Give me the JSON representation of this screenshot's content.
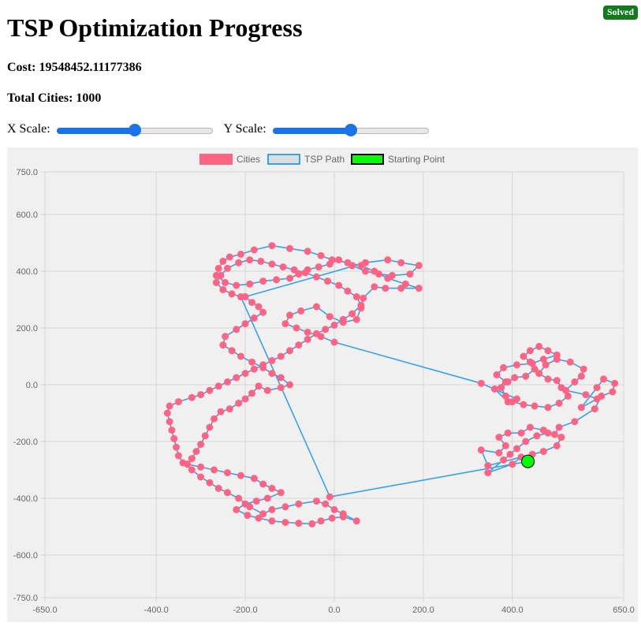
{
  "status_badge": "Solved",
  "title": "TSP Optimization Progress",
  "cost_text": "Cost: 19548452.11177386",
  "cities_text": "Total Cities: 1000",
  "controls": {
    "x_scale_label": "X Scale:",
    "y_scale_label": "Y Scale:",
    "x_scale_value": 0.5,
    "y_scale_value": 0.5
  },
  "colors": {
    "badge": "#117a1a",
    "cities": "#ff6384",
    "path": "#36a2eb",
    "start": "#00ff00",
    "slider": "#1a73e8",
    "chart_bg": "#f0f0f0"
  },
  "chart_data": {
    "type": "scatter",
    "legend_position": "top-center",
    "grid": true,
    "xlim": [
      -650,
      650
    ],
    "ylim": [
      -750,
      750
    ],
    "x_ticks": [
      "-650.0",
      "-400.0",
      "-200.0",
      "0.0",
      "200.0",
      "400.0",
      "650.0"
    ],
    "y_ticks": [
      "750.0",
      "600.0",
      "400.0",
      "200.0",
      "0.0",
      "-200.0",
      "-400.0",
      "-600.0",
      "-750.0"
    ],
    "x_tick_values": [
      -650,
      -400,
      -200,
      0,
      200,
      400,
      650
    ],
    "y_tick_values": [
      750,
      600,
      400,
      200,
      0,
      -200,
      -400,
      -600,
      -750
    ],
    "legend": [
      "Cities",
      "TSP Path",
      "Starting Point"
    ],
    "starting_point": {
      "x": 435,
      "y": -270
    },
    "path": [
      [
        435,
        -270
      ],
      [
        445,
        -245
      ],
      [
        470,
        -235
      ],
      [
        500,
        -215
      ],
      [
        510,
        -185
      ],
      [
        480,
        -170
      ],
      [
        455,
        -180
      ],
      [
        430,
        -200
      ],
      [
        410,
        -225
      ],
      [
        395,
        -245
      ],
      [
        380,
        -265
      ],
      [
        345,
        -310
      ],
      [
        400,
        -280
      ],
      [
        420,
        -255
      ],
      [
        345,
        -285
      ],
      [
        330,
        -230
      ],
      [
        370,
        -240
      ],
      [
        385,
        -215
      ],
      [
        370,
        -185
      ],
      [
        390,
        -170
      ],
      [
        420,
        -170
      ],
      [
        440,
        -150
      ],
      [
        470,
        -160
      ],
      [
        495,
        -175
      ],
      [
        505,
        -150
      ],
      [
        540,
        -130
      ],
      [
        585,
        -85
      ],
      [
        600,
        -40
      ],
      [
        625,
        -25
      ],
      [
        630,
        5
      ],
      [
        605,
        20
      ],
      [
        590,
        -10
      ],
      [
        555,
        -80
      ],
      [
        590,
        -50
      ],
      [
        565,
        -35
      ],
      [
        520,
        -20
      ],
      [
        540,
        10
      ],
      [
        555,
        30
      ],
      [
        560,
        55
      ],
      [
        530,
        80
      ],
      [
        500,
        90
      ],
      [
        475,
        70
      ],
      [
        460,
        40
      ],
      [
        480,
        20
      ],
      [
        500,
        15
      ],
      [
        510,
        -10
      ],
      [
        525,
        -40
      ],
      [
        505,
        -65
      ],
      [
        480,
        -80
      ],
      [
        450,
        -75
      ],
      [
        425,
        -70
      ],
      [
        400,
        -60
      ],
      [
        385,
        -40
      ],
      [
        375,
        -10
      ],
      [
        390,
        10
      ],
      [
        405,
        25
      ],
      [
        430,
        30
      ],
      [
        450,
        55
      ],
      [
        440,
        80
      ],
      [
        425,
        100
      ],
      [
        440,
        120
      ],
      [
        460,
        135
      ],
      [
        480,
        120
      ],
      [
        500,
        105
      ],
      [
        470,
        90
      ],
      [
        445,
        75
      ],
      [
        410,
        70
      ],
      [
        380,
        60
      ],
      [
        365,
        35
      ],
      [
        385,
        10
      ],
      [
        360,
        -15
      ],
      [
        390,
        -60
      ],
      [
        410,
        -50
      ],
      [
        330,
        5
      ],
      [
        0,
        150
      ],
      [
        -30,
        170
      ],
      [
        -60,
        185
      ],
      [
        -85,
        200
      ],
      [
        -110,
        215
      ],
      [
        -100,
        245
      ],
      [
        -75,
        260
      ],
      [
        -40,
        275
      ],
      [
        -10,
        240
      ],
      [
        20,
        220
      ],
      [
        50,
        230
      ],
      [
        60,
        270
      ],
      [
        65,
        305
      ],
      [
        90,
        345
      ],
      [
        115,
        340
      ],
      [
        150,
        340
      ],
      [
        190,
        340
      ],
      [
        160,
        355
      ],
      [
        120,
        375
      ],
      [
        90,
        400
      ],
      [
        60,
        420
      ],
      [
        30,
        430
      ],
      [
        -5,
        440
      ],
      [
        -30,
        455
      ],
      [
        -60,
        470
      ],
      [
        -100,
        480
      ],
      [
        -140,
        490
      ],
      [
        -180,
        475
      ],
      [
        -210,
        460
      ],
      [
        -235,
        450
      ],
      [
        -250,
        435
      ],
      [
        -260,
        410
      ],
      [
        -265,
        385
      ],
      [
        -245,
        360
      ],
      [
        -220,
        350
      ],
      [
        -190,
        355
      ],
      [
        -160,
        365
      ],
      [
        -130,
        370
      ],
      [
        -100,
        375
      ],
      [
        -80,
        390
      ],
      [
        -60,
        405
      ],
      [
        -35,
        415
      ],
      [
        -10,
        425
      ],
      [
        10,
        440
      ],
      [
        40,
        420
      ],
      [
        70,
        400
      ],
      [
        100,
        390
      ],
      [
        130,
        385
      ],
      [
        170,
        390
      ],
      [
        190,
        420
      ],
      [
        150,
        430
      ],
      [
        120,
        440
      ],
      [
        70,
        430
      ],
      [
        -200,
        310
      ],
      [
        -185,
        290
      ],
      [
        -170,
        275
      ],
      [
        -160,
        255
      ],
      [
        -180,
        235
      ],
      [
        -200,
        215
      ],
      [
        -220,
        195
      ],
      [
        -245,
        170
      ],
      [
        -250,
        140
      ],
      [
        -230,
        120
      ],
      [
        -210,
        100
      ],
      [
        -185,
        80
      ],
      [
        -160,
        60
      ],
      [
        -140,
        40
      ],
      [
        -120,
        25
      ],
      [
        -100,
        0
      ],
      [
        -120,
        -10
      ],
      [
        -150,
        -20
      ],
      [
        -170,
        -5
      ],
      [
        -185,
        -30
      ],
      [
        -200,
        -50
      ],
      [
        -215,
        -65
      ],
      [
        -235,
        -85
      ],
      [
        -255,
        -95
      ],
      [
        -270,
        -120
      ],
      [
        -280,
        -150
      ],
      [
        -290,
        -180
      ],
      [
        -300,
        -210
      ],
      [
        -310,
        -235
      ],
      [
        -320,
        -260
      ],
      [
        -330,
        -280
      ],
      [
        -300,
        -290
      ],
      [
        -270,
        -300
      ],
      [
        -240,
        -310
      ],
      [
        -210,
        -320
      ],
      [
        -180,
        -330
      ],
      [
        -160,
        -350
      ],
      [
        -140,
        -365
      ],
      [
        -120,
        -380
      ],
      [
        -150,
        -400
      ],
      [
        -175,
        -410
      ],
      [
        -200,
        -420
      ],
      [
        -220,
        -440
      ],
      [
        -195,
        -460
      ],
      [
        -170,
        -470
      ],
      [
        -140,
        -480
      ],
      [
        -110,
        -485
      ],
      [
        -80,
        -488
      ],
      [
        -50,
        -490
      ],
      [
        -30,
        -480
      ],
      [
        -5,
        -470
      ],
      [
        20,
        -465
      ],
      [
        50,
        -480
      ],
      [
        20,
        -455
      ],
      [
        0,
        -440
      ],
      [
        -20,
        -420
      ],
      [
        -40,
        -410
      ],
      [
        -80,
        -420
      ],
      [
        -110,
        -430
      ],
      [
        -140,
        -440
      ],
      [
        -160,
        -455
      ],
      [
        -190,
        -430
      ],
      [
        -215,
        -400
      ],
      [
        -240,
        -380
      ],
      [
        -260,
        -365
      ],
      [
        -280,
        -345
      ],
      [
        -300,
        -325
      ],
      [
        -320,
        -300
      ],
      [
        -340,
        -275
      ],
      [
        -350,
        -250
      ],
      [
        -355,
        -220
      ],
      [
        -360,
        -190
      ],
      [
        -365,
        -160
      ],
      [
        -370,
        -130
      ],
      [
        -375,
        -100
      ],
      [
        -370,
        -75
      ],
      [
        -350,
        -60
      ],
      [
        -320,
        -45
      ],
      [
        -300,
        -35
      ],
      [
        -280,
        -20
      ],
      [
        -260,
        -5
      ],
      [
        -240,
        10
      ],
      [
        -220,
        25
      ],
      [
        -200,
        40
      ],
      [
        -180,
        55
      ],
      [
        -160,
        70
      ],
      [
        -140,
        85
      ],
      [
        -120,
        100
      ],
      [
        -100,
        120
      ],
      [
        -80,
        140
      ],
      [
        -60,
        160
      ],
      [
        -40,
        180
      ],
      [
        -20,
        195
      ],
      [
        0,
        210
      ],
      [
        20,
        230
      ],
      [
        40,
        250
      ],
      [
        60,
        280
      ],
      [
        50,
        310
      ],
      [
        30,
        330
      ],
      [
        10,
        350
      ],
      [
        -15,
        365
      ],
      [
        -40,
        380
      ],
      [
        -65,
        395
      ],
      [
        -90,
        405
      ],
      [
        -115,
        415
      ],
      [
        -140,
        425
      ],
      [
        -165,
        435
      ],
      [
        -190,
        440
      ],
      [
        -215,
        430
      ],
      [
        -240,
        410
      ],
      [
        -255,
        385
      ],
      [
        -265,
        360
      ],
      [
        -250,
        335
      ],
      [
        -230,
        320
      ],
      [
        -210,
        310
      ],
      [
        -10,
        -395
      ],
      [
        435,
        -270
      ]
    ]
  }
}
